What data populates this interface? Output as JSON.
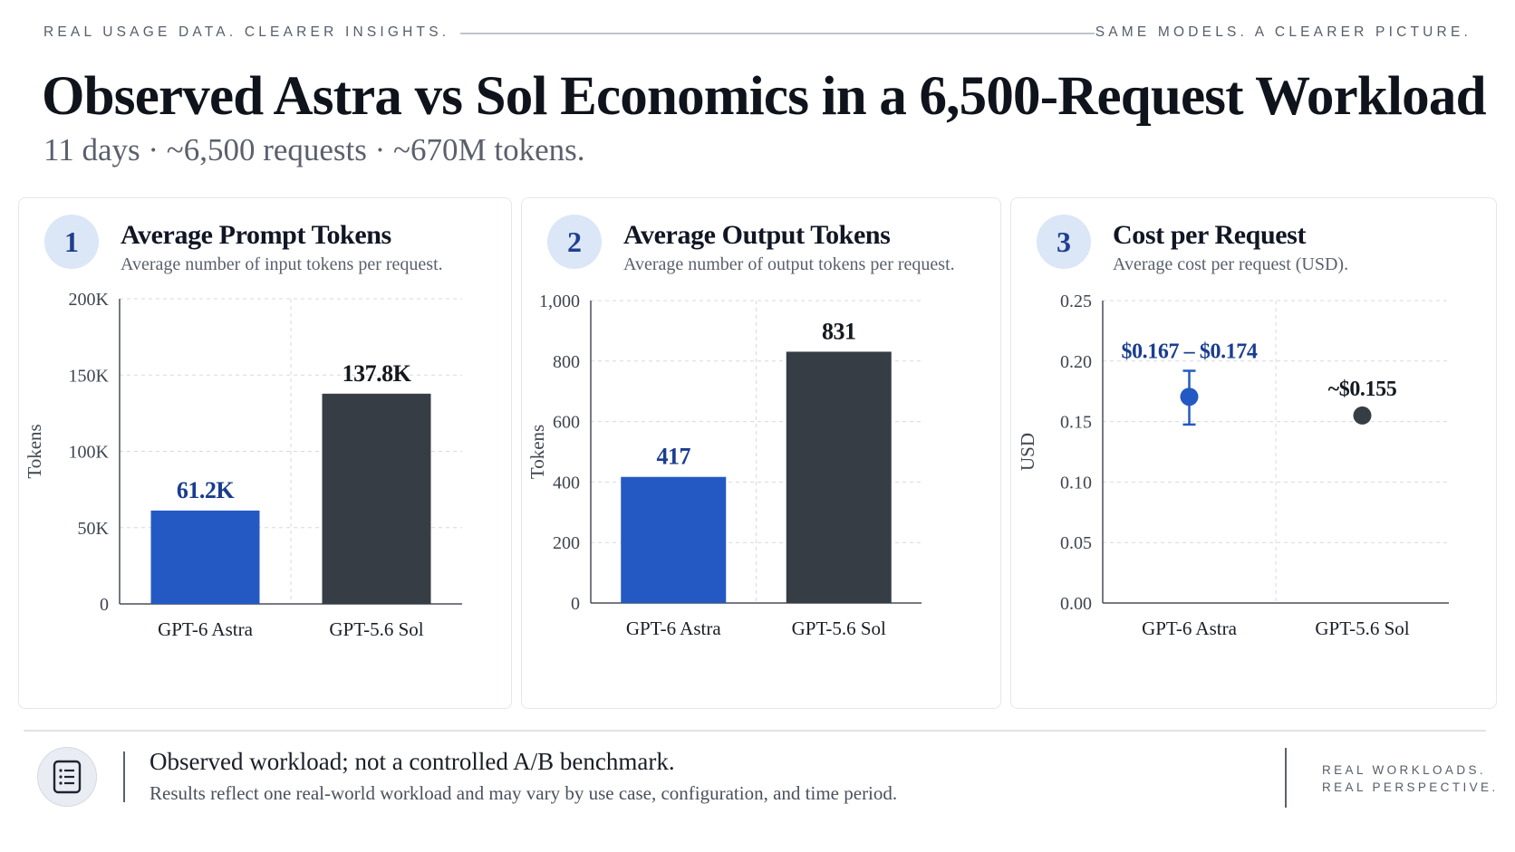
{
  "header": {
    "kicker_left": "REAL USAGE DATA. CLEARER INSIGHTS.",
    "kicker_right": "SAME MODELS. A CLEARER PICTURE.",
    "title": "Observed Astra vs Sol Economics in a 6,500-Request Workload",
    "subtitle": "11 days · ~6,500 requests · ~670M tokens."
  },
  "panels": [
    {
      "number": "1",
      "title": "Average Prompt Tokens",
      "subtitle": "Average number of input tokens per request."
    },
    {
      "number": "2",
      "title": "Average Output Tokens",
      "subtitle": "Average number of output tokens per request."
    },
    {
      "number": "3",
      "title": "Cost per Request",
      "subtitle": "Average cost per request (USD)."
    }
  ],
  "chart_data": [
    {
      "type": "bar",
      "title": "Average Prompt Tokens",
      "ylabel": "Tokens",
      "categories": [
        "GPT-6 Astra",
        "GPT-5.6 Sol"
      ],
      "values": [
        61200,
        137800
      ],
      "data_labels": [
        "61.2K",
        "137.8K"
      ],
      "colors": [
        "#2459c4",
        "#373d45"
      ],
      "ylim": [
        0,
        200000
      ],
      "yticks": [
        0,
        50000,
        100000,
        150000,
        200000
      ],
      "ytick_labels": [
        "0",
        "50K",
        "100K",
        "150K",
        "200K"
      ],
      "grid": true
    },
    {
      "type": "bar",
      "title": "Average Output Tokens",
      "ylabel": "Tokens",
      "categories": [
        "GPT-6 Astra",
        "GPT-5.6 Sol"
      ],
      "values": [
        417,
        831
      ],
      "data_labels": [
        "417",
        "831"
      ],
      "colors": [
        "#2459c4",
        "#373d45"
      ],
      "ylim": [
        0,
        1000
      ],
      "yticks": [
        0,
        200,
        400,
        600,
        800,
        1000
      ],
      "ytick_labels": [
        "0",
        "200",
        "400",
        "600",
        "800",
        "1,000"
      ],
      "grid": true
    },
    {
      "type": "scatter",
      "title": "Cost per Request",
      "ylabel": "USD",
      "categories": [
        "GPT-6 Astra",
        "GPT-5.6 Sol"
      ],
      "values": [
        0.1705,
        0.155
      ],
      "ranges": [
        [
          0.167,
          0.174
        ],
        null
      ],
      "data_labels": [
        "$0.167 – $0.174",
        "~$0.155"
      ],
      "colors": [
        "#2459c4",
        "#373d45"
      ],
      "ylim": [
        0,
        0.25
      ],
      "yticks": [
        0,
        0.05,
        0.1,
        0.15,
        0.2,
        0.25
      ],
      "ytick_labels": [
        "0.00",
        "0.05",
        "0.10",
        "0.15",
        "0.20",
        "0.25"
      ],
      "grid": true
    }
  ],
  "footer": {
    "note_icon": "document-list-icon",
    "note_title": "Observed workload; not a controlled A/B benchmark.",
    "note_sub": "Results reflect one real-world workload and may vary by use case, configuration, and time period.",
    "tag_line1": "REAL WORKLOADS.",
    "tag_line2": "REAL PERSPECTIVE."
  }
}
